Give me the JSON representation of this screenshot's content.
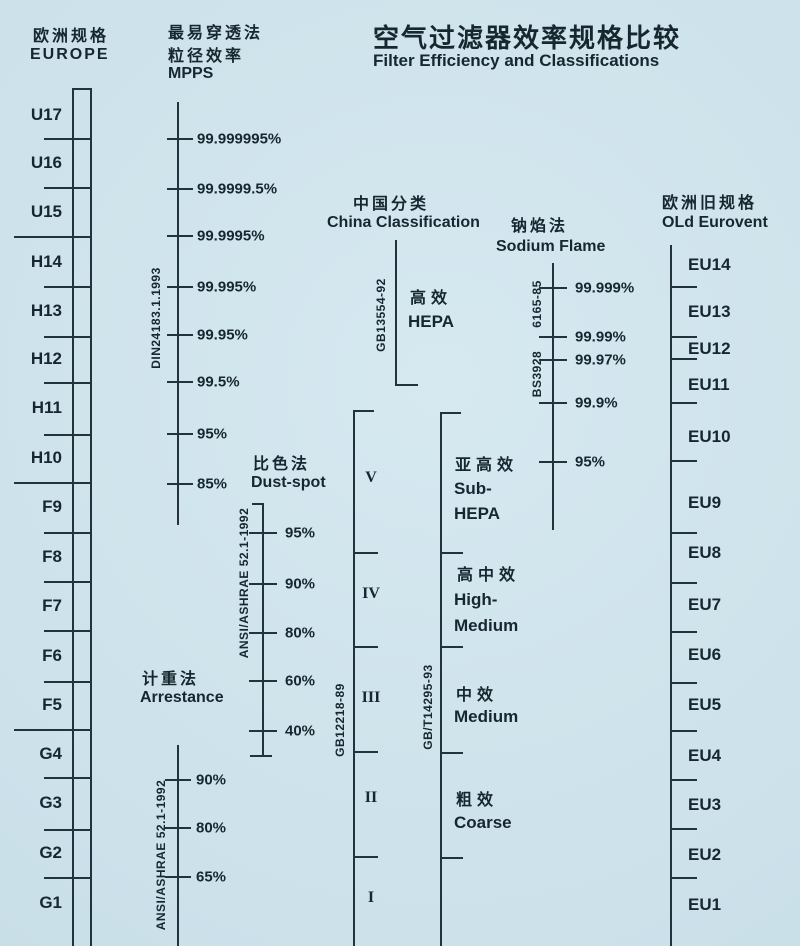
{
  "title": {
    "zh": "空气过滤器效率规格比较",
    "en": "Filter Efficiency and Classifications"
  },
  "europe": {
    "heading_zh": "欧洲规格",
    "heading_en": "EUROPE",
    "classes": [
      "U17",
      "U16",
      "U15",
      "H14",
      "H13",
      "H12",
      "H11",
      "H10",
      "F9",
      "F8",
      "F7",
      "F6",
      "F5",
      "G4",
      "G3",
      "G2",
      "G1"
    ]
  },
  "mpps": {
    "heading_zh": "最易穿透法",
    "heading_zh2": "粒径效率",
    "heading_en": "MPPS",
    "standard": "DIN24183.1.1993",
    "values": [
      "99.999995%",
      "99.9999.5%",
      "99.9995%",
      "99.995%",
      "99.95%",
      "99.5%",
      "95%",
      "85%"
    ]
  },
  "dust_spot": {
    "heading_zh": "比色法",
    "heading_en": "Dust-spot",
    "standard": "ANSI/ASHRAE 52.1-1992",
    "values": [
      "95%",
      "90%",
      "80%",
      "60%",
      "40%"
    ]
  },
  "arrestance": {
    "heading_zh": "计重法",
    "heading_en": "Arrestance",
    "standard": "ANSI/ASHRAE 52.1-1992",
    "values": [
      "90%",
      "80%",
      "65%"
    ]
  },
  "china": {
    "heading_zh": "中国分类",
    "heading_en": "China Classification",
    "hepa_standard": "GB13554-92",
    "hepa_zh": "高效",
    "hepa_en": "HEPA",
    "roman_standard": "GB12218-89",
    "roman": [
      "V",
      "IV",
      "III",
      "II",
      "I"
    ],
    "grade_standard": "GB/T14295-93",
    "grades": [
      {
        "zh": "亚高效",
        "en": "Sub-",
        "en2": "HEPA"
      },
      {
        "zh": "高中效",
        "en": "High-",
        "en2": "Medium"
      },
      {
        "zh": "中效",
        "en": "Medium",
        "en2": ""
      },
      {
        "zh": "粗效",
        "en": "Coarse",
        "en2": ""
      }
    ]
  },
  "sodium_flame": {
    "heading_zh": "钠焰法",
    "heading_en": "Sodium Flame",
    "standard_1": "BS3928",
    "standard_2": "6165-85",
    "values": [
      "99.999%",
      "99.99%",
      "99.97%",
      "99.9%",
      "95%"
    ]
  },
  "eurovent": {
    "heading_zh": "欧洲旧规格",
    "heading_en": "OLd Eurovent",
    "classes": [
      "EU14",
      "EU13",
      "EU12",
      "EU11",
      "EU10",
      "EU9",
      "EU8",
      "EU7",
      "EU6",
      "EU5",
      "EU4",
      "EU3",
      "EU2",
      "EU1"
    ]
  },
  "colors": {
    "background": "#cfe3ec",
    "ink": "#17272f"
  }
}
